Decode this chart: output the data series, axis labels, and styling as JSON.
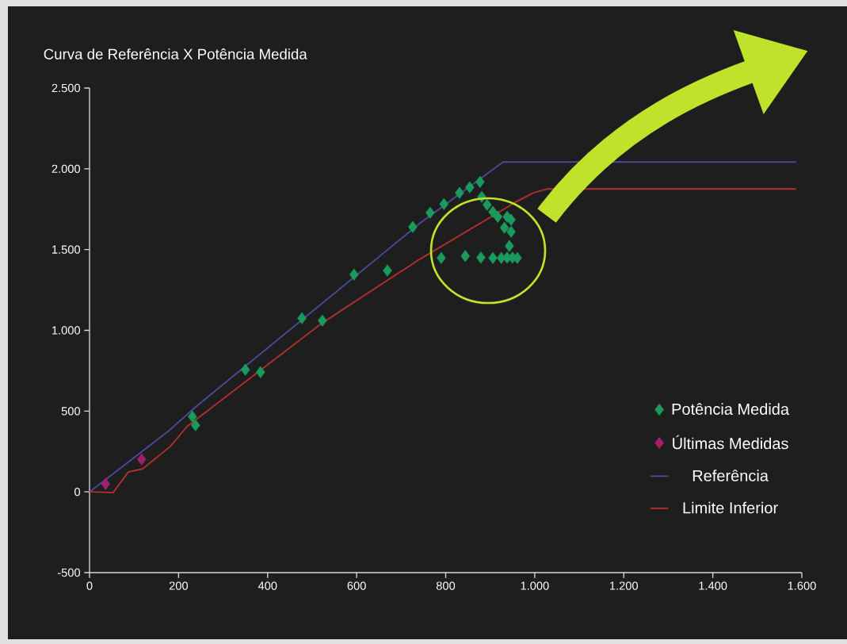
{
  "chart_data": {
    "type": "scatter",
    "title": "Curva de Referência X Potência Medida",
    "series": [
      {
        "name": "Potência Medida",
        "color": "#1a9a5c",
        "x": [
          231,
          238,
          350,
          384,
          477,
          523,
          594,
          669,
          726,
          765,
          796,
          831,
          854,
          877,
          881,
          893,
          906,
          917,
          938,
          947,
          932,
          947,
          943,
          790,
          844,
          879,
          906,
          925,
          938,
          950,
          961
        ],
        "values": [
          466,
          412,
          756,
          741,
          1075,
          1060,
          1345,
          1370,
          1640,
          1728,
          1782,
          1851,
          1885,
          1919,
          1826,
          1777,
          1733,
          1703,
          1703,
          1684,
          1635,
          1610,
          1522,
          1448,
          1460,
          1450,
          1448,
          1448,
          1450,
          1450,
          1448
        ]
      },
      {
        "name": "Últimas Medidas",
        "color": "#a0206a",
        "x": [
          36,
          117
        ],
        "values": [
          49,
          201
        ]
      },
      {
        "name": "Referência",
        "type": "line",
        "marker": "none",
        "color": "#4a4a9a",
        "x": [
          0,
          178,
          238,
          745,
          929,
          1587
        ],
        "values": [
          0,
          378,
          525,
          1669,
          2042,
          2042
        ]
      },
      {
        "name": "Limite Inferior",
        "type": "line",
        "marker": "none",
        "color": "#b03030",
        "x": [
          0,
          53,
          87,
          119,
          181,
          220,
          523,
          741,
          801,
          956,
          997,
          1027,
          1587
        ],
        "values": [
          0,
          -5,
          123,
          142,
          280,
          407,
          1046,
          1439,
          1537,
          1792,
          1851,
          1875,
          1875
        ]
      }
    ],
    "xlim": [
      0,
      1600
    ],
    "ylim": [
      -500,
      2500
    ],
    "xticks": [
      0,
      200,
      400,
      600,
      800,
      {
        "value": 1000,
        "label": "1.000"
      },
      {
        "value": 1200,
        "label": "1.200"
      },
      {
        "value": 1400,
        "label": "1.400"
      },
      {
        "value": 1600,
        "label": "1.600"
      }
    ],
    "yticks": [
      -500,
      0,
      500,
      {
        "value": 1000,
        "label": "1.000"
      },
      {
        "value": 1500,
        "label": "1.500"
      },
      {
        "value": 2000,
        "label": "2.000"
      },
      {
        "value": 2500,
        "label": "2.500"
      }
    ],
    "legend": "bottom right",
    "marker": "diamond"
  }
}
